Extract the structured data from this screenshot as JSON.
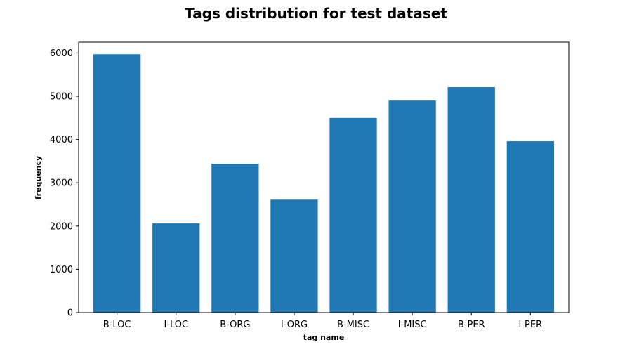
{
  "chart_data": {
    "type": "bar",
    "title": "Tags distribution for test dataset",
    "xlabel": "tag name",
    "ylabel": "frequency",
    "categories": [
      "B-LOC",
      "I-LOC",
      "B-ORG",
      "I-ORG",
      "B-MISC",
      "I-MISC",
      "B-PER",
      "I-PER"
    ],
    "values": [
      5970,
      2060,
      3440,
      2610,
      4500,
      4900,
      5210,
      3960
    ],
    "ylim": [
      0,
      6250
    ],
    "yticks": [
      0,
      1000,
      2000,
      3000,
      4000,
      5000,
      6000
    ],
    "bar_color": "#1f77b4",
    "grid": false
  }
}
